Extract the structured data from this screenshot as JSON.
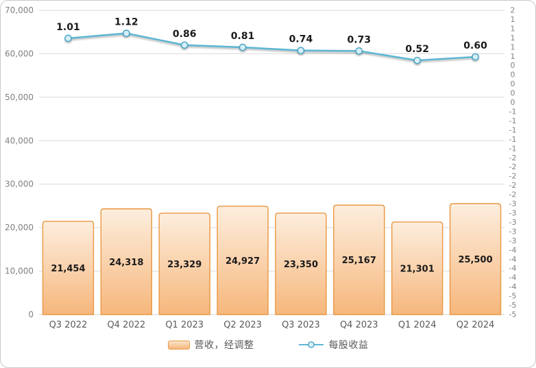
{
  "chart_data": {
    "type": "combo",
    "title": "",
    "categories": [
      "Q3 2022",
      "Q4 2022",
      "Q1 2023",
      "Q2 2023",
      "Q3 2023",
      "Q4 2023",
      "Q1 2024",
      "Q2 2024"
    ],
    "series": [
      {
        "name": "营收，经调整",
        "type": "bar",
        "axis": "left",
        "values": [
          21454,
          24318,
          23329,
          24927,
          23350,
          25167,
          21301,
          25500
        ],
        "labels": [
          "21,454",
          "24,318",
          "23,329",
          "24,927",
          "23,350",
          "25,167",
          "21,301",
          "25,500"
        ]
      },
      {
        "name": "每股收益",
        "type": "line",
        "axis": "right",
        "values": [
          1.01,
          1.12,
          0.86,
          0.81,
          0.74,
          0.73,
          0.52,
          0.6
        ],
        "labels": [
          "1.01",
          "1.12",
          "0.86",
          "0.81",
          "0.74",
          "0.73",
          "0.52",
          "0.60"
        ]
      }
    ],
    "left_axis": {
      "min": 0,
      "max": 70000,
      "major_unit": 10000,
      "tick_labels": [
        "70,000",
        "60,000",
        "50,000",
        "40,000",
        "30,000",
        "20,000",
        "10,000",
        "0"
      ]
    },
    "right_axis": {
      "min": -5.1,
      "max": 1.63,
      "tick_labels": [
        "2",
        "1",
        "1",
        "1",
        "1",
        "1",
        "0",
        "0",
        "0",
        "0",
        "0",
        "-1",
        "-1",
        "-1",
        "-1",
        "-1",
        "-2",
        "-2",
        "-2",
        "-2",
        "-2",
        "-3",
        "-3",
        "-3",
        "-3",
        "-3",
        "-4",
        "-4",
        "-4",
        "-4",
        "-4",
        "-5",
        "-5",
        "-5"
      ]
    },
    "grid": true,
    "legend_position": "bottom"
  },
  "colors": {
    "bar_fill_top": "#FDEEDE",
    "bar_fill_bottom": "#F6B77C",
    "bar_border": "#E89742",
    "line": "#5FB6D3",
    "marker_fill": "#D6EEF7",
    "marker_border": "#4BA6C4",
    "gridline": "#D9D9D9",
    "baseline": "#D3D3D3",
    "axis_label": "#808080",
    "category_label": "#595959",
    "data_label": "#1A1A1A",
    "legend_label": "#595959"
  }
}
